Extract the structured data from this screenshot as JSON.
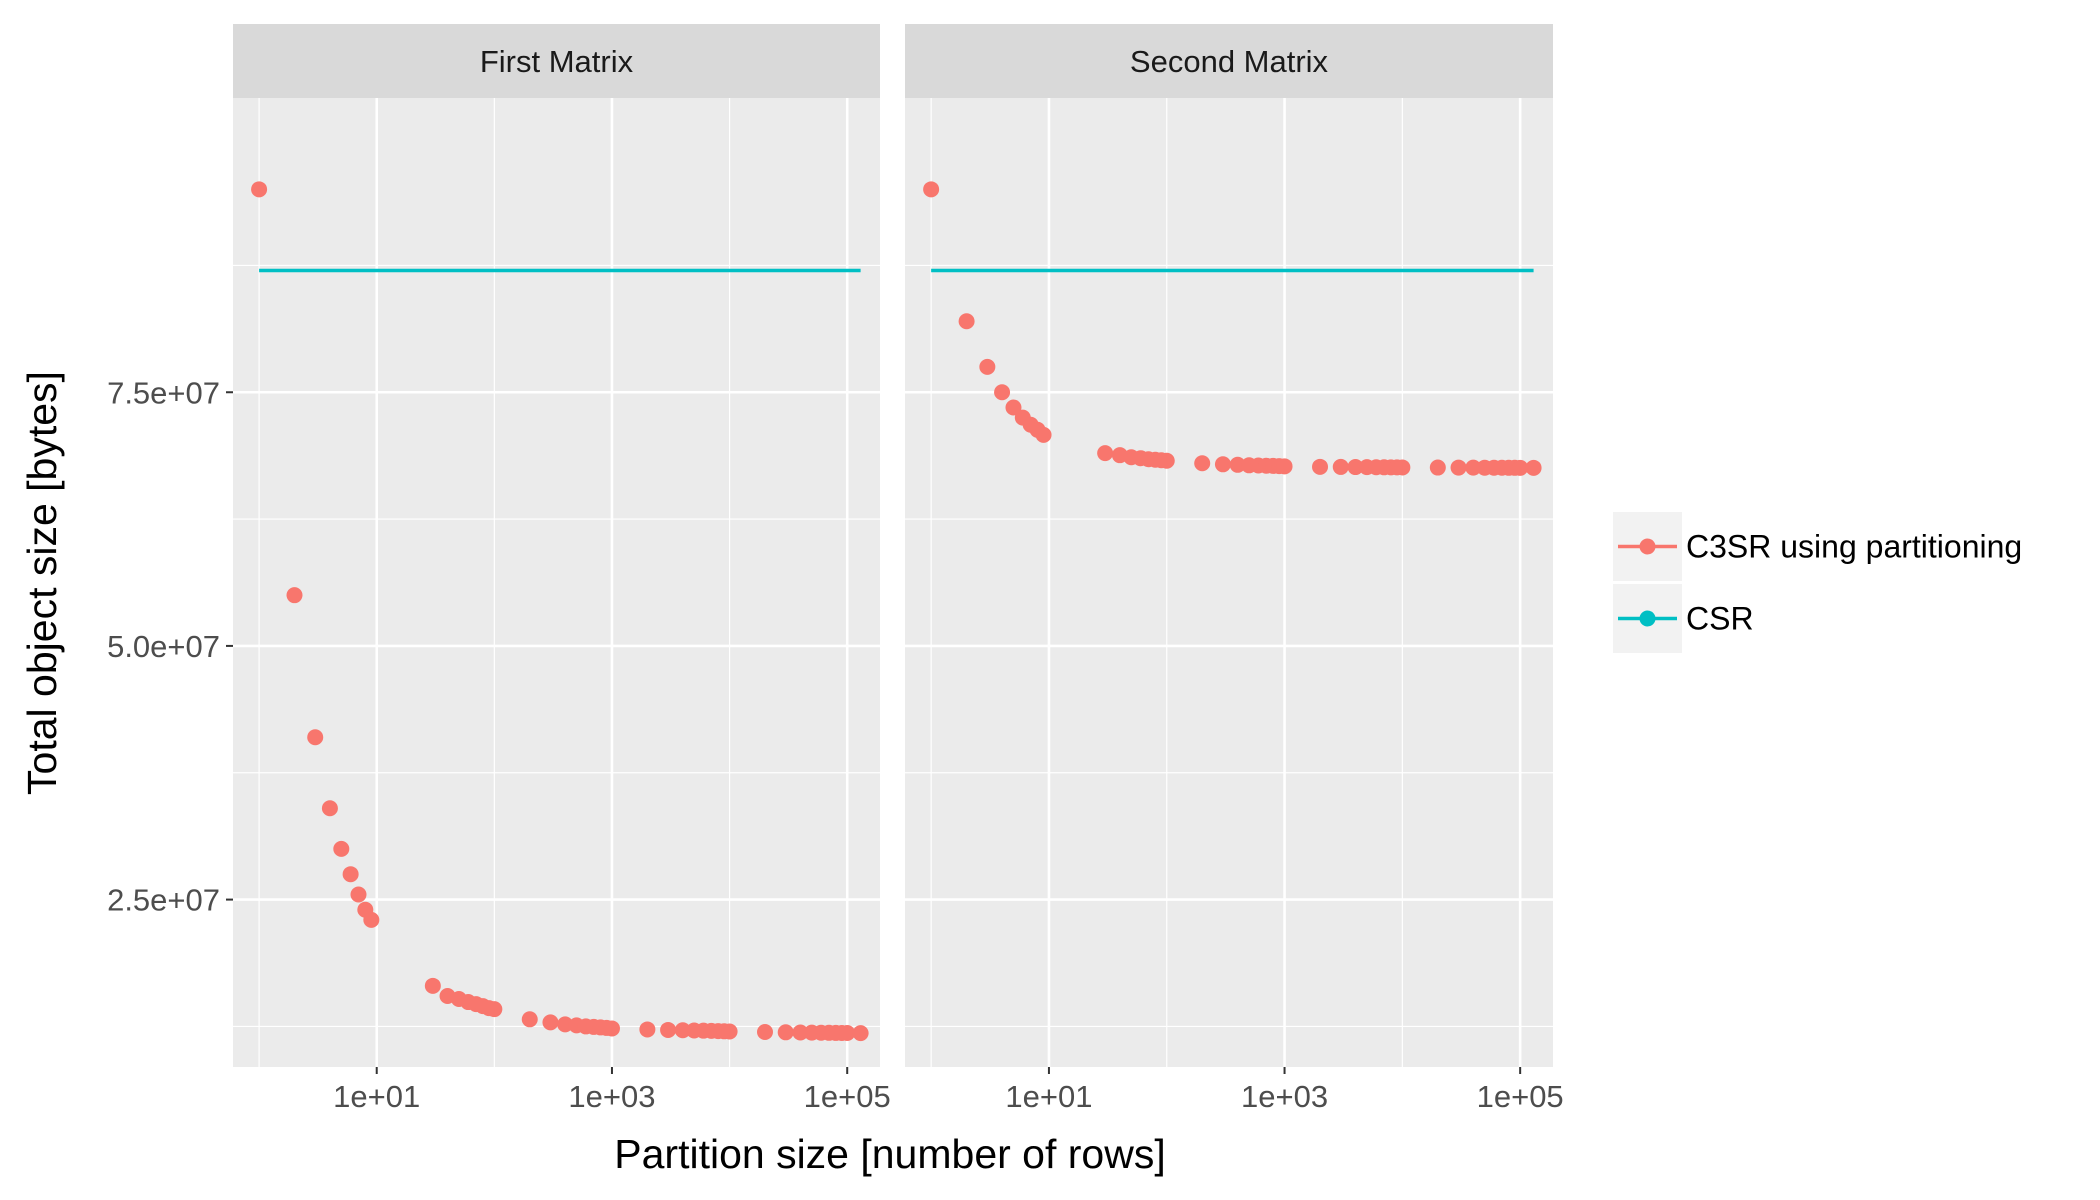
{
  "chart_data": {
    "type": "scatter",
    "xlabel": "Partition size [number of rows]",
    "ylabel": "Total object size [bytes]",
    "x_scale": "log10",
    "xlim": [
      0.6,
      190000
    ],
    "ylim": [
      8500000,
      104000000
    ],
    "x_ticks": [
      10,
      1000,
      100000
    ],
    "x_tick_labels": [
      "1e+01",
      "1e+03",
      "1e+05"
    ],
    "y_ticks": [
      25000000,
      50000000,
      75000000
    ],
    "y_tick_labels": [
      "2.5e+07",
      "5.0e+07",
      "7.5e+07"
    ],
    "grid": true,
    "legend_position": "right",
    "colors": {
      "C3SR using partitioning": "#F8766D",
      "CSR": "#00BFC4",
      "panel_background": "#EBEBEB",
      "strip_background": "#D9D9D9",
      "grid": "#FFFFFF"
    },
    "legend": [
      {
        "label": "C3SR using partitioning",
        "color": "#F8766D",
        "icon": "line-point-icon"
      },
      {
        "label": "CSR",
        "color": "#00BFC4",
        "icon": "line-point-icon"
      }
    ],
    "facets": [
      {
        "title": "First Matrix",
        "series": [
          {
            "name": "C3SR using partitioning",
            "kind": "points",
            "x": [
              1,
              2,
              3,
              4,
              5,
              6,
              7,
              8,
              9,
              30,
              40,
              50,
              60,
              70,
              80,
              90,
              100,
              200,
              300,
              400,
              500,
              600,
              700,
              800,
              900,
              1000,
              2000,
              3000,
              4000,
              5000,
              6000,
              7000,
              8000,
              9000,
              10000,
              20000,
              30000,
              40000,
              50000,
              60000,
              70000,
              80000,
              90000,
              100000,
              130000
            ],
            "y": [
              95000000,
              55000000,
              41000000,
              34000000,
              30000000,
              27500000,
              25500000,
              24000000,
              23000000,
              16500000,
              15500000,
              15200000,
              14900000,
              14700000,
              14500000,
              14300000,
              14200000,
              13200000,
              12900000,
              12700000,
              12600000,
              12500000,
              12450000,
              12400000,
              12350000,
              12300000,
              12200000,
              12150000,
              12120000,
              12100000,
              12080000,
              12060000,
              12040000,
              12020000,
              12000000,
              11950000,
              11920000,
              11900000,
              11890000,
              11880000,
              11870000,
              11860000,
              11855000,
              11850000,
              11840000
            ]
          },
          {
            "name": "CSR",
            "kind": "line",
            "x": [
              1,
              130000
            ],
            "y": [
              87000000,
              87000000
            ]
          }
        ]
      },
      {
        "title": "Second Matrix",
        "series": [
          {
            "name": "C3SR using partitioning",
            "kind": "points",
            "x": [
              1,
              2,
              3,
              4,
              5,
              6,
              7,
              8,
              9,
              30,
              40,
              50,
              60,
              70,
              80,
              90,
              100,
              200,
              300,
              400,
              500,
              600,
              700,
              800,
              900,
              1000,
              2000,
              3000,
              4000,
              5000,
              6000,
              7000,
              8000,
              9000,
              10000,
              20000,
              30000,
              40000,
              50000,
              60000,
              70000,
              80000,
              90000,
              100000,
              130000
            ],
            "y": [
              95000000,
              82000000,
              77500000,
              75000000,
              73500000,
              72500000,
              71800000,
              71300000,
              70800000,
              69000000,
              68800000,
              68600000,
              68500000,
              68400000,
              68350000,
              68300000,
              68250000,
              68000000,
              67900000,
              67850000,
              67800000,
              67780000,
              67760000,
              67740000,
              67720000,
              67700000,
              67650000,
              67640000,
              67630000,
              67620000,
              67610000,
              67605000,
              67600000,
              67595000,
              67590000,
              67580000,
              67575000,
              67570000,
              67565000,
              67560000,
              67558000,
              67556000,
              67554000,
              67552000,
              67550000
            ]
          },
          {
            "name": "CSR",
            "kind": "line",
            "x": [
              1,
              130000
            ],
            "y": [
              87000000,
              87000000
            ]
          }
        ]
      }
    ]
  }
}
